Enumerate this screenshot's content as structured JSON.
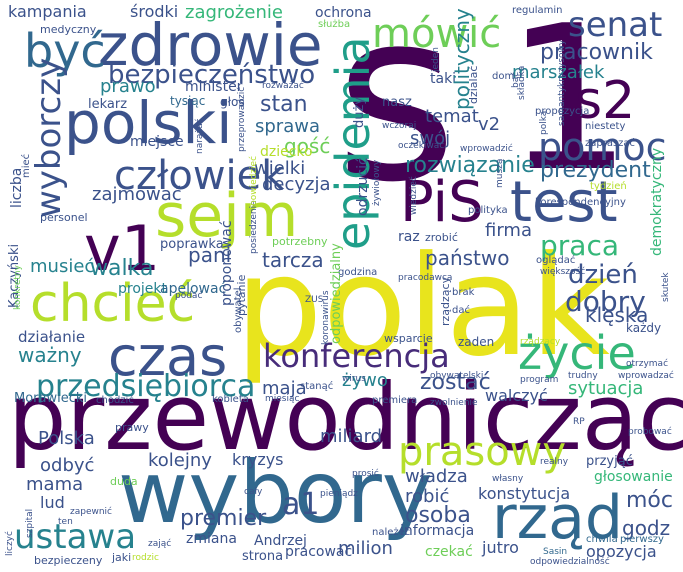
{
  "palette": {
    "dark": "#440154",
    "purple": "#472c7a",
    "blue": "#3b528b",
    "steel": "#31688e",
    "teal": "#26828e",
    "green": "#1f9e89",
    "mint": "#35b779",
    "lime": "#6ece58",
    "yellowgreen": "#b5de2b",
    "yellow": "#fde725"
  },
  "words": [
    {
      "t": "s",
      "c": "#440154"
    },
    {
      "t": "1",
      "c": "#440154"
    },
    {
      "t": "polak",
      "c": "#e8e41d"
    },
    {
      "t": "przewodniczący",
      "c": "#440154"
    },
    {
      "t": "wybory",
      "c": "#31688e"
    },
    {
      "t": "zdrowie",
      "c": "#3b528b"
    },
    {
      "t": "być",
      "c": "#31688e"
    },
    {
      "t": "polski",
      "c": "#3b528b"
    },
    {
      "t": "sejm",
      "c": "#b5de2b"
    },
    {
      "t": "PiS",
      "c": "#440154"
    },
    {
      "t": "test",
      "c": "#3b528b"
    },
    {
      "t": "s2",
      "c": "#440154"
    },
    {
      "t": "senat",
      "c": "#3b528b"
    },
    {
      "t": "pomoc",
      "c": "#3b528b"
    },
    {
      "t": "v1",
      "c": "#440154"
    },
    {
      "t": "chcieć",
      "c": "#b5de2b"
    },
    {
      "t": "czas",
      "c": "#3b528b"
    },
    {
      "t": "konferencja",
      "c": "#472c7a"
    },
    {
      "t": "życie",
      "c": "#35b779"
    },
    {
      "t": "rząd",
      "c": "#31688e"
    },
    {
      "t": "prasowy",
      "c": "#b5de2b"
    },
    {
      "t": "ustawa",
      "c": "#26828e"
    },
    {
      "t": "przedsiębiorca",
      "c": "#26828e"
    },
    {
      "t": "człowiek",
      "c": "#3b528b"
    },
    {
      "t": "bezpieczeństwo",
      "c": "#3b528b"
    },
    {
      "t": "mówić",
      "c": "#6ece58"
    },
    {
      "t": "epidemia",
      "c": "#1f9e89"
    },
    {
      "t": "wyborczy",
      "c": "#3b528b"
    },
    {
      "t": "pracownik",
      "c": "#3b528b"
    },
    {
      "t": "marszałek",
      "c": "#26828e"
    },
    {
      "t": "prezydent",
      "c": "#31688e"
    },
    {
      "t": "rozwiązanie",
      "c": "#26828e"
    },
    {
      "t": "praca",
      "c": "#35b779"
    },
    {
      "t": "dzień",
      "c": "#3b528b"
    },
    {
      "t": "dobry",
      "c": "#3b528b"
    },
    {
      "t": "klęska",
      "c": "#3b528b"
    },
    {
      "t": "państwo",
      "c": "#3b528b"
    },
    {
      "t": "tarcza",
      "c": "#3b528b"
    },
    {
      "t": "pani",
      "c": "#3b528b"
    },
    {
      "t": "walka",
      "c": "#26828e"
    },
    {
      "t": "musieć",
      "c": "#26828e"
    },
    {
      "t": "projekt",
      "c": "#26828e"
    },
    {
      "t": "apelować",
      "c": "#31688e"
    },
    {
      "t": "poprawka",
      "c": "#3b528b"
    },
    {
      "t": "działanie",
      "c": "#3b528b"
    },
    {
      "t": "ważny",
      "c": "#26828e"
    },
    {
      "t": "Morawiecki",
      "c": "#31688e"
    },
    {
      "t": "maja",
      "c": "#3b528b"
    },
    {
      "t": "żywo",
      "c": "#26828e"
    },
    {
      "t": "zostać",
      "c": "#3b528b"
    },
    {
      "t": "walczyć",
      "c": "#3b528b"
    },
    {
      "t": "sytuacja",
      "c": "#35b779"
    },
    {
      "t": "stan",
      "c": "#3b528b"
    },
    {
      "t": "sprawa",
      "c": "#31688e"
    },
    {
      "t": "gość",
      "c": "#6ece58"
    },
    {
      "t": "dziecko",
      "c": "#b5de2b"
    },
    {
      "t": "wielki",
      "c": "#3b528b"
    },
    {
      "t": "decyzja",
      "c": "#3b528b"
    },
    {
      "t": "zajmować",
      "c": "#3b528b"
    },
    {
      "t": "miejsce",
      "c": "#3b528b"
    },
    {
      "t": "prawo",
      "c": "#26828e"
    },
    {
      "t": "lekarz",
      "c": "#3b528b"
    },
    {
      "t": "tysiąc",
      "c": "#31688e"
    },
    {
      "t": "głos",
      "c": "#3b528b"
    },
    {
      "t": "minister",
      "c": "#3b528b"
    },
    {
      "t": "temat",
      "c": "#3b528b"
    },
    {
      "t": "swój",
      "c": "#3b528b"
    },
    {
      "t": "v2",
      "c": "#3b528b"
    },
    {
      "t": "nasz",
      "c": "#3b528b"
    },
    {
      "t": "firma",
      "c": "#3b528b"
    },
    {
      "t": "Polska",
      "c": "#3b528b"
    },
    {
      "t": "kolejny",
      "c": "#3b528b"
    },
    {
      "t": "kryzys",
      "c": "#3b528b"
    },
    {
      "t": "miliard",
      "c": "#3b528b"
    },
    {
      "t": "odbyć",
      "c": "#3b528b"
    },
    {
      "t": "mama",
      "c": "#3b528b"
    },
    {
      "t": "lud",
      "c": "#3b528b"
    },
    {
      "t": "a1",
      "c": "#3b528b"
    },
    {
      "t": "premier",
      "c": "#3b528b"
    },
    {
      "t": "zmiana",
      "c": "#3b528b"
    },
    {
      "t": "Andrzej",
      "c": "#3b528b"
    },
    {
      "t": "strona",
      "c": "#3b528b"
    },
    {
      "t": "pracować",
      "c": "#3b528b"
    },
    {
      "t": "milion",
      "c": "#3b528b"
    },
    {
      "t": "osoba",
      "c": "#3b528b"
    },
    {
      "t": "robić",
      "c": "#3b528b"
    },
    {
      "t": "władza",
      "c": "#3b528b"
    },
    {
      "t": "konstytucja",
      "c": "#3b528b"
    },
    {
      "t": "informacja",
      "c": "#3b528b"
    },
    {
      "t": "jutro",
      "c": "#3b528b"
    },
    {
      "t": "czekać",
      "c": "#6ece58"
    },
    {
      "t": "godz",
      "c": "#3b528b"
    },
    {
      "t": "opozycja",
      "c": "#3b528b"
    },
    {
      "t": "móc",
      "c": "#3b528b"
    },
    {
      "t": "głosowanie",
      "c": "#35b779"
    },
    {
      "t": "przyjąć",
      "c": "#3b528b"
    },
    {
      "t": "pierwszy",
      "c": "#31688e"
    },
    {
      "t": "chwila",
      "c": "#31688e"
    },
    {
      "t": "Sasin",
      "c": "#31688e"
    },
    {
      "t": "odpowiedzialność",
      "c": "#3b528b"
    },
    {
      "t": "kampania",
      "c": "#3b528b"
    },
    {
      "t": "środki",
      "c": "#3b528b"
    },
    {
      "t": "zagrożenie",
      "c": "#35b779"
    },
    {
      "t": "ochrona",
      "c": "#3b528b"
    },
    {
      "t": "służba",
      "c": "#6ece58"
    },
    {
      "t": "regulamin",
      "c": "#3b528b"
    },
    {
      "t": "medyczny",
      "c": "#3b528b"
    },
    {
      "t": "propozycja",
      "c": "#3b528b"
    },
    {
      "t": "niestety",
      "c": "#3b528b"
    },
    {
      "t": "zapraszać",
      "c": "#3b528b"
    },
    {
      "t": "tydzień",
      "c": "#b5de2b"
    },
    {
      "t": "korespondencyjny",
      "c": "#3b528b"
    },
    {
      "t": "wprowadzić",
      "c": "#3b528b"
    },
    {
      "t": "oczekiwać",
      "c": "#3b528b"
    },
    {
      "t": "polityka",
      "c": "#3b528b"
    },
    {
      "t": "raz",
      "c": "#3b528b"
    },
    {
      "t": "zrobić",
      "c": "#3b528b"
    },
    {
      "t": "dom",
      "c": "#3b528b"
    },
    {
      "t": "taki",
      "c": "#3b528b"
    },
    {
      "t": "wczoraj",
      "c": "#3b528b"
    },
    {
      "t": "rozważać",
      "c": "#3b528b"
    },
    {
      "t": "personel",
      "c": "#3b528b"
    },
    {
      "t": "potrzebny",
      "c": "#6ece58"
    },
    {
      "t": "godzina",
      "c": "#3b528b"
    },
    {
      "t": "ZUS",
      "c": "#3b528b"
    },
    {
      "t": "podać",
      "c": "#3b528b"
    },
    {
      "t": "każdy",
      "c": "#3b528b"
    },
    {
      "t": "zaden",
      "c": "#3b528b"
    },
    {
      "t": "wsparcie",
      "c": "#3b528b"
    },
    {
      "t": "obywatelski",
      "c": "#3b528b"
    },
    {
      "t": "program",
      "c": "#3b528b"
    },
    {
      "t": "kobieta",
      "c": "#3b528b"
    },
    {
      "t": "miesiąc",
      "c": "#3b528b"
    },
    {
      "t": "premiera",
      "c": "#3b528b"
    },
    {
      "t": "zwolnienie",
      "c": "#3b528b"
    },
    {
      "t": "chodzić",
      "c": "#3b528b"
    },
    {
      "t": "prawy",
      "c": "#3b528b"
    },
    {
      "t": "duda",
      "c": "#6ece58"
    },
    {
      "t": "wirus",
      "c": "#3b528b"
    },
    {
      "t": "stanąć",
      "c": "#3b528b"
    },
    {
      "t": "brak",
      "c": "#3b528b"
    },
    {
      "t": "dać",
      "c": "#3b528b"
    },
    {
      "t": "pracodawca",
      "c": "#3b528b"
    },
    {
      "t": "oglądać",
      "c": "#3b528b"
    },
    {
      "t": "większość",
      "c": "#3b528b"
    },
    {
      "t": "rządzący",
      "c": "#3b528b"
    },
    {
      "t": "otrzymać",
      "c": "#3b528b"
    },
    {
      "t": "wprowadzać",
      "c": "#b5de2b"
    },
    {
      "t": "trudny",
      "c": "#3b528b"
    },
    {
      "t": "probować",
      "c": "#3b528b"
    },
    {
      "t": "RP",
      "c": "#3b528b"
    },
    {
      "t": "realny",
      "c": "#3b528b"
    },
    {
      "t": "własny",
      "c": "#3b528b"
    },
    {
      "t": "pieniądz",
      "c": "#3b528b"
    },
    {
      "t": "prosić",
      "c": "#3b528b"
    },
    {
      "t": "cały",
      "c": "#3b528b"
    },
    {
      "t": "zająć",
      "c": "#3b528b"
    },
    {
      "t": "jaki",
      "c": "#3b528b"
    },
    {
      "t": "rodzic",
      "c": "#3b528b"
    },
    {
      "t": "ten",
      "c": "#3b528b"
    },
    {
      "t": "zapewnić",
      "c": "#b5de2b"
    },
    {
      "t": "bezpieczeny",
      "c": "#3b528b"
    },
    {
      "t": "należeć",
      "c": "#3b528b"
    },
    {
      "t": "składka",
      "c": "#3b528b"
    },
    {
      "t": "polka",
      "c": "#3b528b"
    },
    {
      "t": "samantykryzysowy",
      "c": "#3b528b"
    },
    {
      "t": "jeden",
      "c": "#3b528b"
    },
    {
      "t": "bać",
      "c": "#3b528b"
    },
    {
      "t": "dzialać",
      "c": "#3b528b"
    },
    {
      "t": "duży",
      "c": "#3b528b"
    },
    {
      "t": "przeprowadzić",
      "c": "#3b528b"
    },
    {
      "t": "posiedzenie",
      "c": "#3b528b"
    },
    {
      "t": "powiedzieć",
      "c": "#3b528b"
    },
    {
      "t": "narażać",
      "c": "#3b528b"
    },
    {
      "t": "polityczny",
      "c": "#b5de2b"
    },
    {
      "t": "liczba",
      "c": "#3b528b"
    },
    {
      "t": "mieć",
      "c": "#26828e"
    },
    {
      "t": "Kaczyński",
      "c": "#3b528b"
    },
    {
      "t": "konkretny",
      "c": "#3b528b"
    },
    {
      "t": "proponować",
      "c": "#3b528b"
    },
    {
      "t": "pytanie",
      "c": "#6ece58"
    },
    {
      "t": "obywatel",
      "c": "#3b528b"
    },
    {
      "t": "koronawirus",
      "c": "#3b528b"
    },
    {
      "t": "odpowiedzialny",
      "c": "#3b528b"
    },
    {
      "t": "odrzucić",
      "c": "#3b528b"
    },
    {
      "t": "żywiołowy",
      "c": "#6ece58"
    },
    {
      "t": "muszą",
      "c": "#3b528b"
    },
    {
      "t": "wiedzieć",
      "c": "#3b528b"
    },
    {
      "t": "demokratyczny",
      "c": "#3b528b"
    },
    {
      "t": "skutek",
      "c": "#3b528b"
    },
    {
      "t": "szpital",
      "c": "#35b779"
    },
    {
      "t": "liczyć",
      "c": "#3b528b"
    },
    {
      "t": "gospodarka",
      "c": "#3b528b"
    },
    {
      "t": "wynagrodzenie",
      "c": "#3b528b"
    },
    {
      "t": "uniosek",
      "c": "#3b528b"
    },
    {
      "t": "zamiast",
      "c": "#3b528b"
    },
    {
      "t": "pokazować",
      "c": "#3b528b"
    },
    {
      "t": "rys",
      "c": "#3b528b"
    }
  ]
}
